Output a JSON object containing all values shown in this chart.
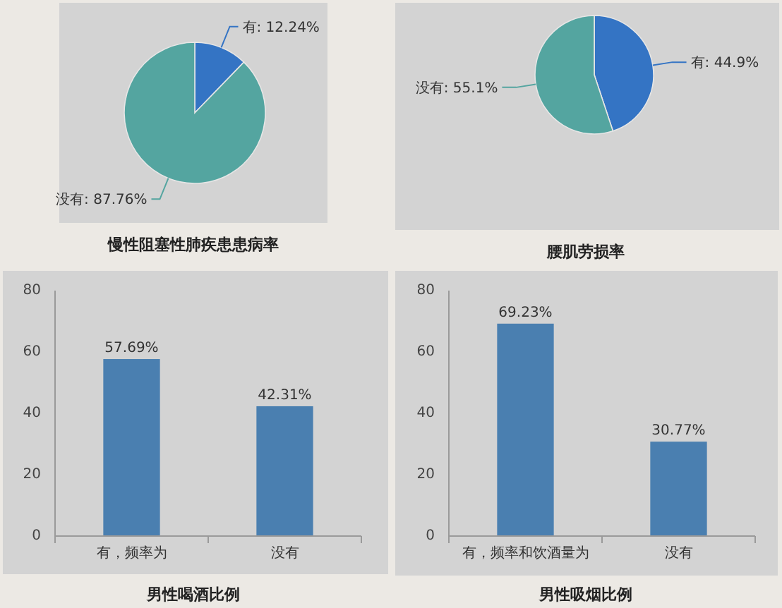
{
  "chart_data": [
    {
      "type": "pie",
      "title": "慢性阻塞性肺疾患患病率",
      "categories": [
        "有",
        "没有"
      ],
      "values": [
        12.24,
        87.76
      ],
      "value_labels": [
        "12.24%",
        "87.76%"
      ],
      "colors": [
        "#3474c4",
        "#54a5a0"
      ]
    },
    {
      "type": "pie",
      "title": "腰肌劳损率",
      "categories": [
        "有",
        "没有"
      ],
      "values": [
        44.9,
        55.1
      ],
      "value_labels": [
        "44.9%",
        "55.1%"
      ],
      "colors": [
        "#3474c4",
        "#54a5a0"
      ]
    },
    {
      "type": "bar",
      "title": "男性喝酒比例",
      "categories": [
        "有，频率为",
        "没有"
      ],
      "values": [
        57.69,
        42.31
      ],
      "value_labels": [
        "57.69%",
        "42.31%"
      ],
      "color": "#4a7fb0",
      "ylim": [
        0,
        80
      ],
      "yticks": [
        0,
        20,
        40,
        60,
        80
      ]
    },
    {
      "type": "bar",
      "title": "男性吸烟比例",
      "categories": [
        "有，频率和饮酒量为",
        "没有"
      ],
      "values": [
        69.23,
        30.77
      ],
      "value_labels": [
        "69.23%",
        "30.77%"
      ],
      "color": "#4a7fb0",
      "ylim": [
        0,
        80
      ],
      "yticks": [
        0,
        20,
        40,
        60,
        80
      ]
    }
  ]
}
